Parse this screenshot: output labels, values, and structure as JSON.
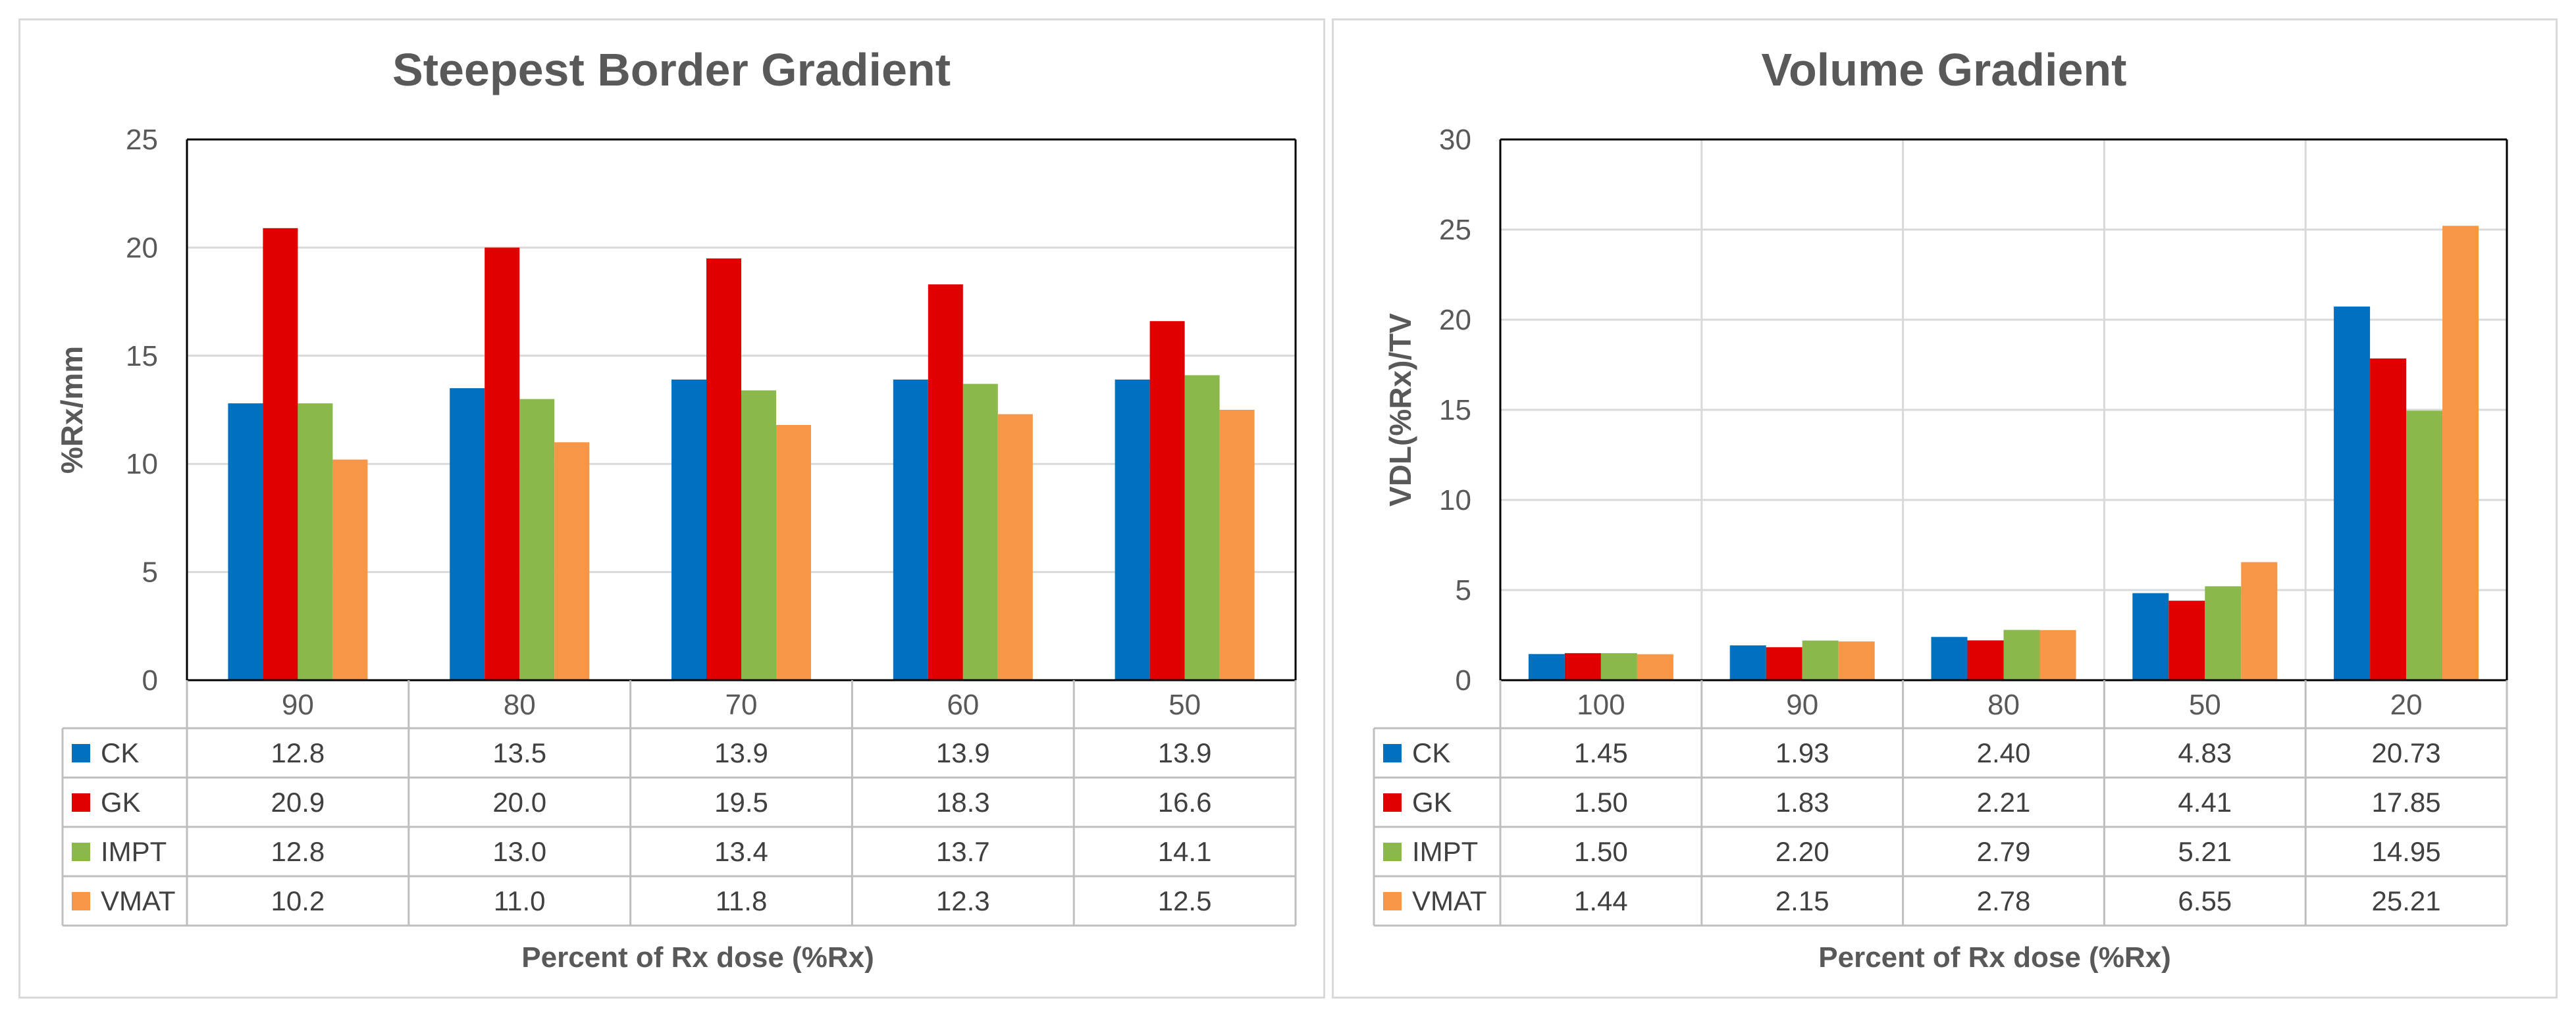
{
  "colors": {
    "CK": "#0070c0",
    "GK": "#e00000",
    "IMPT": "#8ab84a",
    "VMAT": "#f79646"
  },
  "chart_data": [
    {
      "type": "bar",
      "title": "Steepest Border Gradient",
      "xlabel": "Percent of Rx dose (%Rx)",
      "ylabel": "%Rx/mm",
      "ylim": [
        0,
        25
      ],
      "yticks": [
        "0",
        "5",
        "10",
        "15",
        "20",
        "25"
      ],
      "grid": "horizontal",
      "categories": [
        "90",
        "80",
        "70",
        "60",
        "50"
      ],
      "series": [
        {
          "name": "CK",
          "values": [
            12.8,
            13.5,
            13.9,
            13.9,
            13.9
          ],
          "labels": [
            "12.8",
            "13.5",
            "13.9",
            "13.9",
            "13.9"
          ]
        },
        {
          "name": "GK",
          "values": [
            20.9,
            20.0,
            19.5,
            18.3,
            16.6
          ],
          "labels": [
            "20.9",
            "20.0",
            "19.5",
            "18.3",
            "16.6"
          ]
        },
        {
          "name": "IMPT",
          "values": [
            12.8,
            13.0,
            13.4,
            13.7,
            14.1
          ],
          "labels": [
            "12.8",
            "13.0",
            "13.4",
            "13.7",
            "14.1"
          ]
        },
        {
          "name": "VMAT",
          "values": [
            10.2,
            11.0,
            11.8,
            12.3,
            12.5
          ],
          "labels": [
            "10.2",
            "11.0",
            "11.8",
            "12.3",
            "12.5"
          ]
        }
      ]
    },
    {
      "type": "bar",
      "title": "Volume Gradient",
      "xlabel": "Percent of Rx dose (%Rx)",
      "ylabel": "VDL(%Rx)/TV",
      "ylim": [
        0,
        30
      ],
      "yticks": [
        "0",
        "5",
        "10",
        "15",
        "20",
        "25",
        "30"
      ],
      "grid": "both",
      "categories": [
        "100",
        "90",
        "80",
        "50",
        "20"
      ],
      "series": [
        {
          "name": "CK",
          "values": [
            1.45,
            1.93,
            2.4,
            4.83,
            20.73
          ],
          "labels": [
            "1.45",
            "1.93",
            "2.40",
            "4.83",
            "20.73"
          ]
        },
        {
          "name": "GK",
          "values": [
            1.5,
            1.83,
            2.21,
            4.41,
            17.85
          ],
          "labels": [
            "1.50",
            "1.83",
            "2.21",
            "4.41",
            "17.85"
          ]
        },
        {
          "name": "IMPT",
          "values": [
            1.5,
            2.2,
            2.79,
            5.21,
            14.95
          ],
          "labels": [
            "1.50",
            "2.20",
            "2.79",
            "5.21",
            "14.95"
          ]
        },
        {
          "name": "VMAT",
          "values": [
            1.44,
            2.15,
            2.78,
            6.55,
            25.21
          ],
          "labels": [
            "1.44",
            "2.15",
            "2.78",
            "6.55",
            "25.21"
          ]
        }
      ]
    }
  ]
}
